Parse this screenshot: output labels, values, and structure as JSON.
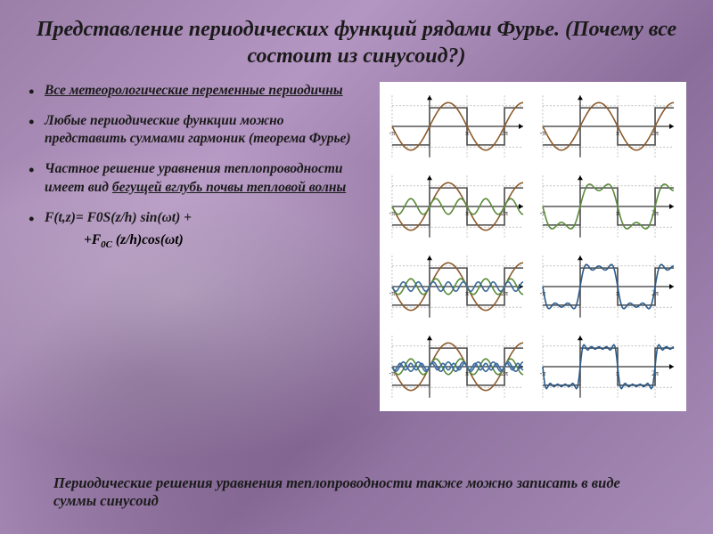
{
  "title": "Представление периодических функций рядами Фурье.\n(Почему все состоит из синусоид?)",
  "bullets": {
    "b1": "Все метеорологические переменные периодичны",
    "b2": "Любые периодические функции можно представить суммами гармоник (теорема Фурье)",
    "b3_a": "Частное решение уравнения теплопроводности имеет вид ",
    "b3_b": "бегущей вглубь почвы тепловой волны",
    "b4_line1": "F(t,z)= F",
    "b4_sub1": "0S",
    "b4_mid1": "(z/h) sin(ωt) +",
    "b4_line2": "+F",
    "b4_sub2": "0C",
    "b4_mid2": " (z/h)cos(ωt)"
  },
  "footer": "Периодические решения уравнения теплопроводности также можно записать в виде суммы синусоид",
  "chart": {
    "colors": {
      "axis": "#000000",
      "grid": "#999999",
      "square": "#4a4a4a",
      "h1": "#8a5a2a",
      "h2": "#5a8a3a",
      "h3": "#3a6a9a",
      "sum": "#2a5a8a",
      "bg": "#ffffff"
    },
    "tick_labels": [
      "-π",
      "π",
      "2π"
    ],
    "axis_width": 1.0,
    "line_width": 1.6,
    "square_amp": 0.9,
    "harmonics": [
      {
        "amp": 1.15,
        "freq": 1,
        "color_key": "h1"
      },
      {
        "amp": 0.38,
        "freq": 3,
        "color_key": "h2"
      },
      {
        "amp": 0.23,
        "freq": 5,
        "color_key": "h3"
      }
    ],
    "left_rows": [
      1,
      2,
      3,
      4
    ],
    "right_rows": [
      1,
      2,
      3,
      5
    ]
  }
}
